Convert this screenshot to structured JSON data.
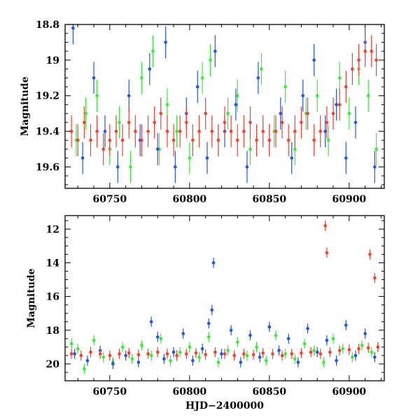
{
  "colors": {
    "green": "#33ee33",
    "blue": "#1e55ee",
    "red": "#ff3b2a",
    "axis": "#000000",
    "background": "#ffffff"
  },
  "chart_data": [
    {
      "type": "scatter",
      "title": "",
      "xlabel": "",
      "ylabel": "Magnitude",
      "xlim": [
        60722,
        60922
      ],
      "ylim": [
        18.8,
        19.72
      ],
      "y_inverted": true,
      "x_ticks": [
        60750,
        60800,
        60850,
        60900
      ],
      "y_ticks": [
        18.8,
        19,
        19.2,
        19.4,
        19.6
      ],
      "grid": false,
      "legend": "none",
      "error_bars": true,
      "series": [
        {
          "color": "green",
          "x": [
            60729,
            60735,
            60742,
            60750,
            60756,
            60763,
            60770,
            60777,
            60781,
            60786,
            60792,
            60800,
            60808,
            60813,
            60818,
            60824,
            60830,
            60838,
            60845,
            60853,
            60860,
            60866,
            60873,
            60880,
            60887,
            60894,
            60900,
            60906,
            60912,
            60917
          ],
          "y": [
            19.45,
            19.3,
            19.2,
            19.5,
            19.35,
            19.6,
            19.1,
            18.95,
            19.5,
            19.25,
            19.4,
            19.55,
            19.1,
            19.0,
            19.45,
            19.3,
            19.2,
            19.5,
            19.05,
            19.4,
            19.15,
            19.5,
            19.3,
            19.2,
            19.45,
            19.1,
            19.3,
            19.05,
            19.2,
            19.5
          ]
        },
        {
          "color": "blue",
          "x": [
            60727,
            60733,
            60740,
            60747,
            60755,
            60762,
            60769,
            60775,
            60780,
            60785,
            60791,
            60798,
            60805,
            60811,
            60816,
            60822,
            60829,
            60836,
            60843,
            60850,
            60857,
            60864,
            60871,
            60878,
            60885,
            60892,
            60898,
            60904,
            60910,
            60916
          ],
          "y": [
            18.82,
            19.55,
            19.1,
            19.4,
            19.6,
            19.2,
            19.45,
            19.05,
            19.5,
            18.9,
            19.6,
            19.3,
            19.15,
            19.55,
            18.95,
            19.4,
            19.25,
            19.6,
            19.1,
            19.45,
            19.3,
            19.55,
            19.2,
            19.0,
            19.4,
            19.25,
            19.55,
            19.35,
            18.9,
            19.6
          ]
        },
        {
          "color": "red",
          "x": [
            60726,
            60730,
            60734,
            60738,
            60742,
            60746,
            60750,
            60754,
            60758,
            60762,
            60766,
            60770,
            60774,
            60778,
            60782,
            60786,
            60790,
            60794,
            60798,
            60802,
            60806,
            60810,
            60814,
            60818,
            60822,
            60826,
            60830,
            60834,
            60838,
            60842,
            60846,
            60850,
            60854,
            60858,
            60862,
            60866,
            60870,
            60874,
            60878,
            60882,
            60886,
            60890,
            60894,
            60898,
            60902,
            60906,
            60910,
            60914,
            60917
          ],
          "y": [
            19.4,
            19.45,
            19.35,
            19.45,
            19.4,
            19.5,
            19.45,
            19.4,
            19.45,
            19.35,
            19.4,
            19.45,
            19.4,
            19.35,
            19.3,
            19.4,
            19.45,
            19.4,
            19.35,
            19.45,
            19.4,
            19.3,
            19.4,
            19.45,
            19.35,
            19.4,
            19.45,
            19.4,
            19.35,
            19.45,
            19.4,
            19.45,
            19.4,
            19.35,
            19.45,
            19.4,
            19.35,
            19.3,
            19.45,
            19.4,
            19.35,
            19.3,
            19.25,
            19.15,
            19.05,
            19.0,
            18.95,
            18.95,
            19.0
          ]
        }
      ]
    },
    {
      "type": "scatter",
      "title": "",
      "xlabel": "HJD−2400000",
      "ylabel": "Magnitude",
      "xlim": [
        60722,
        60922
      ],
      "ylim": [
        11.2,
        21.0
      ],
      "y_inverted": true,
      "x_ticks": [
        60750,
        60800,
        60850,
        60900
      ],
      "y_ticks": [
        12,
        14,
        16,
        18,
        20
      ],
      "grid": false,
      "legend": "none",
      "error_bars": true,
      "series": [
        {
          "color": "green",
          "x": [
            60726,
            60730,
            60734,
            60740,
            60746,
            60752,
            60758,
            60764,
            60770,
            60776,
            60782,
            60788,
            60794,
            60800,
            60806,
            60812,
            60818,
            60824,
            60830,
            60836,
            60842,
            60848,
            60854,
            60860,
            60866,
            60872,
            60878,
            60884,
            60890,
            60896,
            60902,
            60908,
            60914,
            60918
          ],
          "y": [
            18.8,
            19.1,
            20.3,
            18.6,
            19.6,
            19.9,
            19.0,
            19.7,
            18.9,
            19.5,
            18.5,
            19.8,
            19.3,
            19.0,
            19.6,
            18.4,
            19.9,
            19.2,
            18.7,
            19.5,
            19.0,
            19.8,
            18.3,
            19.4,
            19.7,
            18.8,
            19.2,
            19.9,
            18.5,
            19.1,
            19.6,
            18.9,
            19.3,
            19.0
          ]
        },
        {
          "color": "blue",
          "x": [
            60728,
            60736,
            60744,
            60752,
            60760,
            60768,
            60776,
            60780,
            60784,
            60790,
            60796,
            60802,
            60808,
            60812,
            60814,
            60815,
            60820,
            60826,
            60832,
            60838,
            60844,
            60850,
            60856,
            60862,
            60868,
            60874,
            60880,
            60886,
            60892,
            60898,
            60904,
            60910,
            60916
          ],
          "y": [
            19.4,
            19.8,
            19.2,
            20.0,
            19.5,
            19.9,
            17.5,
            18.4,
            19.7,
            19.3,
            18.2,
            19.8,
            19.1,
            17.6,
            16.8,
            14.0,
            19.4,
            18.0,
            19.9,
            18.3,
            19.6,
            17.8,
            19.2,
            18.5,
            19.9,
            17.9,
            19.3,
            18.6,
            19.8,
            17.7,
            19.5,
            18.2,
            19.6
          ]
        },
        {
          "color": "red",
          "x": [
            60726,
            60732,
            60738,
            60744,
            60750,
            60756,
            60762,
            60768,
            60774,
            60780,
            60786,
            60792,
            60798,
            60804,
            60810,
            60816,
            60822,
            60828,
            60834,
            60840,
            60846,
            60852,
            60858,
            60864,
            60870,
            60876,
            60882,
            60885,
            60886,
            60888,
            60894,
            60900,
            60906,
            60912,
            60913,
            60916,
            60918
          ],
          "y": [
            19.4,
            19.5,
            19.3,
            19.4,
            19.5,
            19.4,
            19.35,
            19.45,
            19.4,
            19.3,
            19.4,
            19.5,
            19.4,
            19.35,
            19.45,
            19.3,
            19.4,
            19.5,
            19.4,
            19.45,
            19.35,
            19.4,
            19.5,
            19.4,
            19.35,
            19.3,
            19.4,
            11.8,
            13.4,
            19.3,
            19.2,
            19.15,
            19.1,
            19.05,
            13.5,
            14.9,
            19.0
          ]
        }
      ]
    }
  ]
}
